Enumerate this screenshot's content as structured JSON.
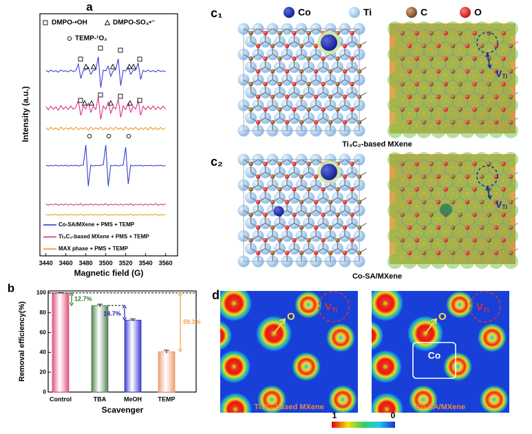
{
  "chart_data": [
    {
      "type": "line",
      "label": "a",
      "xlabel": "Magnetic field (G)",
      "ylabel": "Intensity (a.u.)",
      "annotations": [
        "DMPO-•OH",
        "DMPO-SO₄•⁻",
        "TEMP-¹O₂"
      ],
      "xlim": [
        3434,
        3572
      ],
      "xticks": [
        3440,
        3460,
        3480,
        3500,
        3520,
        3540,
        3560
      ],
      "ylim": [
        -18,
        100
      ],
      "x": [
        3440,
        3442.5,
        3445,
        3447.5,
        3450,
        3452.5,
        3455,
        3457.5,
        3460,
        3462.5,
        3465,
        3467.5,
        3470,
        3472.5,
        3475,
        3477.5,
        3480,
        3482.5,
        3485,
        3487.5,
        3490,
        3492.5,
        3495,
        3497.5,
        3500,
        3502.5,
        3505,
        3507.5,
        3510,
        3512.5,
        3515,
        3517.5,
        3520,
        3522.5,
        3525,
        3527.5,
        3530,
        3532.5,
        3535,
        3537.5,
        3540,
        3542.5,
        3545,
        3547.5,
        3550,
        3552.5,
        3555,
        3557.5,
        3560
      ],
      "series": [
        {
          "color": "#1f2fd0",
          "values": [
            72.4,
            71.6,
            72.5,
            71.8,
            72.3,
            71.5,
            72.6,
            71.9,
            72.2,
            71.7,
            72.5,
            71.8,
            72.3,
            75.5,
            68.5,
            72.2,
            72.8,
            74,
            70.5,
            72.3,
            72.6,
            79,
            64,
            72.5,
            72.2,
            74.5,
            69.5,
            72.3,
            72.7,
            78,
            65,
            72.4,
            72.1,
            74,
            70.5,
            72.3,
            72.5,
            76,
            68,
            72.4,
            71.7,
            72.5,
            71.8,
            72.3,
            71.6,
            72.5,
            71.9,
            72.2,
            71.8
          ]
        },
        {
          "color": "#d8207a",
          "values": [
            54.8,
            53.2,
            55,
            53.4,
            54.6,
            53,
            55.2,
            53.5,
            54.7,
            53.3,
            55.1,
            53.4,
            54.5,
            57.5,
            50.5,
            54.9,
            53.6,
            56.5,
            52,
            54.8,
            53.4,
            59.5,
            48.5,
            55,
            53.5,
            57,
            51.5,
            54.7,
            53.6,
            58.5,
            49.5,
            55.1,
            53.3,
            56.5,
            52,
            54.8,
            53.5,
            57.5,
            50.5,
            55,
            53.2,
            54.9,
            53.4,
            55.1,
            53.3,
            54.7,
            53.5,
            55,
            53.4
          ]
        },
        {
          "color": "#f08a10",
          "values": [
            44.5,
            43.4,
            44.7,
            43.6,
            44.4,
            43.3,
            44.8,
            43.5,
            44.5,
            43.6,
            44.6,
            43.4,
            44.7,
            43.5,
            44.4,
            43.7,
            44.6,
            43.3,
            44.8,
            43.5,
            44.5,
            43.6,
            44.7,
            43.4,
            44.5,
            43.5,
            44.6,
            43.4,
            44.7,
            43.6,
            44.5,
            43.3,
            44.8,
            43.5,
            44.4,
            43.6,
            44.7,
            43.4,
            44.5,
            43.5,
            44.6,
            43.4,
            44.7,
            43.6,
            44.5,
            43.4,
            44.6,
            43.5,
            44.4
          ]
        },
        {
          "name": "Co-SA/MXene + PMS + TEMP",
          "color": "#1f2fd0",
          "values": [
            26.2,
            25.8,
            26.1,
            25.9,
            26.2,
            25.8,
            26.1,
            25.9,
            26.2,
            25.8,
            26.1,
            25.9,
            26.2,
            25.8,
            26.1,
            26.3,
            36,
            16,
            26.2,
            25.8,
            26.1,
            25.9,
            26.2,
            26.4,
            36,
            16,
            26.1,
            25.9,
            26.2,
            25.8,
            26.1,
            26.3,
            35,
            17,
            26.2,
            25.8,
            26.1,
            25.9,
            26.2,
            25.8,
            26.1,
            25.9,
            26.2,
            25.8,
            26.1,
            25.9,
            26.2,
            25.8,
            26.1
          ]
        },
        {
          "name": "Ti₃C₂-based MXene + PMS + TEMP",
          "color": "#d8207a",
          "values": [
            7.3,
            6.7,
            7.2,
            6.8,
            7.4,
            6.6,
            7.2,
            6.8,
            7.3,
            6.7,
            7.3,
            6.7,
            7.2,
            6.8,
            7.4,
            6.6,
            7.2,
            6.8,
            7.3,
            6.7,
            7.3,
            6.7,
            7.2,
            6.8,
            7.4,
            6.6,
            7.2,
            6.8,
            7.3,
            6.7,
            7.3,
            6.7,
            7.2,
            6.8,
            7.4,
            6.6,
            7.2,
            6.8,
            7.3,
            6.7,
            7.3,
            6.7,
            7.2,
            6.8,
            7.4,
            6.6,
            7.2,
            6.8,
            7.3
          ]
        },
        {
          "name": "MAX phase + PMS + TEMP",
          "color": "#f08a10",
          "values": [
            2.2,
            1.8,
            2.1,
            1.9,
            2.3,
            1.7,
            2.1,
            1.9,
            2.2,
            1.8,
            2.2,
            1.8,
            2.1,
            1.9,
            2.3,
            1.7,
            2.1,
            1.9,
            2.2,
            1.8,
            2.2,
            1.8,
            2.1,
            1.9,
            2.3,
            1.7,
            2.1,
            1.9,
            2.2,
            1.8,
            2.2,
            1.8,
            2.1,
            1.9,
            2.3,
            1.7,
            2.1,
            1.9,
            2.2,
            1.8,
            2.2,
            1.8,
            2.1,
            1.9,
            2.3,
            1.7,
            2.1,
            1.9,
            2.2
          ]
        }
      ]
    },
    {
      "type": "bar",
      "label": "b",
      "xlabel": "Scavenger",
      "ylabel": "Removal efficiency(%)",
      "categories": [
        "Control",
        "TBA",
        "MeOH",
        "TEMP"
      ],
      "values": [
        100,
        87.3,
        72.6,
        40.7
      ],
      "errors": [
        0.3,
        1.4,
        1.2,
        1.6
      ],
      "colors": [
        "#e0507a",
        "#4f7f4f",
        "#3a3ad0",
        "#f09a70"
      ],
      "annotations": [
        "12.7%",
        "14.7%",
        "59.3%"
      ],
      "ylim": [
        0,
        102
      ],
      "yticks": [
        0,
        20,
        40,
        60,
        80,
        100
      ]
    }
  ],
  "structures": {
    "label_1": "c₁",
    "label_2": "c₂",
    "legend": [
      "Co",
      "Ti",
      "C",
      "O"
    ],
    "caption_1": "Ti₃C₂-based MXene",
    "caption_2": "Co-SA/MXene",
    "vacancy": {
      "symbol": "V",
      "subscript": "Ti"
    }
  },
  "charge_density": {
    "label": "d",
    "oxygen": "O",
    "cobalt": "Co",
    "caption_1": "Ti₃C₂-based MXene",
    "caption_2": "Co-SA/MXene",
    "vacancy": {
      "symbol": "V",
      "subscript": "Ti"
    },
    "colorbar_ticks": [
      1,
      0
    ]
  }
}
